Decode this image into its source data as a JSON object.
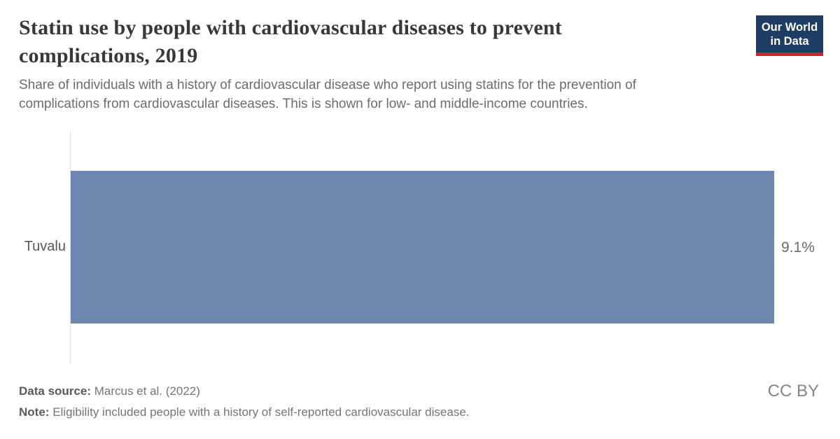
{
  "header": {
    "title_lines": [
      "Statin use by people with cardiovascular diseases to prevent",
      "complications, 2019"
    ],
    "subtitle_lines": [
      "Share of individuals with a history of cardiovascular disease who report using statins for the prevention of",
      "complications from cardiovascular diseases. This is shown for low- and middle-income countries."
    ],
    "logo": {
      "line1": "Our World",
      "line2": "in Data",
      "bg_color": "#1d3d63",
      "accent_color": "#c72529"
    }
  },
  "chart_data": {
    "type": "bar",
    "orientation": "horizontal",
    "title": "Statin use by people with cardiovascular diseases to prevent complications, 2019",
    "subtitle": "Share of individuals with a history of cardiovascular disease who report using statins for the prevention of complications from cardiovascular diseases. This is shown for low- and middle-income countries.",
    "categories": [
      "Tuvalu"
    ],
    "values": [
      9.1
    ],
    "value_labels": [
      "9.1%"
    ],
    "xlim": [
      0,
      9.1
    ],
    "ylabel": "",
    "xlabel": "",
    "grid": false,
    "legend": false,
    "bar_color": "#6e87b0",
    "axis_line_color": "#dedede"
  },
  "footer": {
    "data_source_label": "Data source:",
    "data_source_value": "Marcus et al. (2022)",
    "note_label": "Note:",
    "note_value": "Eligibility included people with a history of self-reported cardiovascular disease.",
    "license": "CC BY"
  }
}
